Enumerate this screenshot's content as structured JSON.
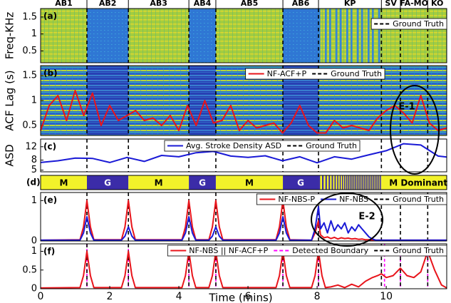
{
  "chart_data": [
    {
      "type": "heatmap",
      "panel_label": "(a)",
      "ylabel": "Freq-KHz",
      "xlim": [
        0,
        11.75
      ],
      "ylim": [
        0.15,
        1.75
      ],
      "yticks": [
        0.5,
        1,
        1.5
      ],
      "sections": [
        "AB1",
        "AB2",
        "AB3",
        "AB4",
        "AB5",
        "AB6",
        "KP",
        "SV",
        "FA-MO",
        "KO"
      ],
      "boundaries": [
        1.34,
        2.54,
        4.29,
        5.07,
        7.01,
        8.04,
        9.86,
        10.41,
        11.2
      ],
      "series": [
        {
          "name": "Ground Truth",
          "color": "#000000",
          "dashed": true
        }
      ]
    },
    {
      "type": "line",
      "heatmap_background": true,
      "panel_label": "(b)",
      "ylabel": "ACF Lag (s)",
      "xlim": [
        0,
        11.75
      ],
      "ylim": [
        0.3,
        1.7
      ],
      "yticks": [
        0.5,
        1,
        1.5
      ],
      "annotation": "E-1",
      "x": [
        0,
        0.25,
        0.5,
        0.75,
        1,
        1.25,
        1.5,
        1.75,
        2,
        2.25,
        2.5,
        2.75,
        3,
        3.25,
        3.5,
        3.75,
        4,
        4.25,
        4.5,
        4.75,
        5,
        5.25,
        5.5,
        5.75,
        6,
        6.25,
        6.5,
        6.75,
        7,
        7.25,
        7.5,
        7.75,
        8,
        8.25,
        8.5,
        8.75,
        9,
        9.25,
        9.5,
        9.75,
        10,
        10.25,
        10.5,
        10.75,
        11,
        11.25,
        11.5,
        11.75
      ],
      "series": [
        {
          "name": "NF-ACF+P",
          "color": "#e8141b",
          "values": [
            0.4,
            0.9,
            1.1,
            0.6,
            1.2,
            0.7,
            1.15,
            0.5,
            0.9,
            0.6,
            0.7,
            0.8,
            0.6,
            0.65,
            0.5,
            0.7,
            0.4,
            0.9,
            0.5,
            1.0,
            0.55,
            0.6,
            0.9,
            0.4,
            0.6,
            0.45,
            0.5,
            0.55,
            0.35,
            0.55,
            0.9,
            0.5,
            0.35,
            0.35,
            0.6,
            0.45,
            0.5,
            0.45,
            0.4,
            0.65,
            0.8,
            0.9,
            0.75,
            0.55,
            1.1,
            0.55,
            0.4,
            0.45
          ]
        },
        {
          "name": "Ground Truth",
          "color": "#000000",
          "dashed": true
        }
      ]
    },
    {
      "type": "line",
      "panel_label": "(c)",
      "ylabel": "ASD",
      "xlim": [
        0,
        11.75
      ],
      "ylim": [
        4.5,
        14.3
      ],
      "yticks": [
        5,
        8,
        12
      ],
      "x": [
        0,
        0.5,
        1,
        1.5,
        2,
        2.5,
        3,
        3.5,
        4,
        4.5,
        5,
        5.5,
        6,
        6.5,
        7,
        7.5,
        8,
        8.5,
        9,
        9.5,
        10,
        10.5,
        11,
        11.5,
        11.75
      ],
      "series": [
        {
          "name": "Avg. Stroke Density ASD",
          "color": "#1a1ad6",
          "values": [
            7.3,
            7.8,
            8.6,
            8.5,
            7.3,
            8.8,
            7.6,
            9.4,
            9.0,
            10.2,
            10.6,
            9.2,
            8.8,
            9.3,
            7.8,
            9.0,
            7.2,
            9.0,
            8.3,
            9.6,
            10.8,
            12.9,
            12.5,
            9.2,
            8.9
          ]
        },
        {
          "name": "Ground Truth",
          "color": "#000000",
          "dashed": true
        }
      ]
    },
    {
      "type": "timeline",
      "panel_label": "(d)",
      "xlim": [
        0,
        11.75
      ],
      "segments": [
        "M",
        "G",
        "M",
        "G",
        "M",
        "G"
      ],
      "dominant_label": "M Dominant",
      "colors": [
        "#f2f22a",
        "#3b2ca8"
      ]
    },
    {
      "type": "line",
      "panel_label": "(e)",
      "xlim": [
        0,
        11.75
      ],
      "ylim": [
        0,
        1.2
      ],
      "yticks": [
        0,
        1
      ],
      "annotation": "E-2",
      "x": [
        0,
        1.14,
        1.24,
        1.34,
        1.44,
        1.54,
        2.34,
        2.44,
        2.54,
        2.64,
        2.74,
        4.09,
        4.19,
        4.29,
        4.39,
        4.49,
        4.87,
        4.97,
        5.07,
        5.17,
        5.27,
        6.81,
        6.91,
        7.01,
        7.11,
        7.21,
        7.84,
        7.94,
        8.04,
        8.1,
        8.2,
        8.3,
        8.4,
        8.5,
        8.6,
        8.7,
        8.8,
        8.9,
        9.0,
        9.1,
        9.2,
        9.3,
        9.4,
        9.5,
        9.6,
        9.7,
        11.75
      ],
      "series": [
        {
          "name": "NF-NBS-P",
          "color": "#e8141b",
          "values": [
            0.02,
            0.03,
            0.35,
            1.0,
            0.35,
            0.03,
            0.03,
            0.35,
            1.0,
            0.35,
            0.03,
            0.03,
            0.35,
            1.0,
            0.35,
            0.03,
            0.03,
            0.35,
            1.0,
            0.35,
            0.03,
            0.03,
            0.35,
            1.0,
            0.35,
            0.03,
            0.02,
            0.2,
            0.5,
            0.15,
            0.08,
            0.1,
            0.06,
            0.09,
            0.05,
            0.08,
            0.06,
            0.07,
            0.05,
            0.06,
            0.04,
            0.05,
            0.03,
            0.03,
            0.02,
            0.02,
            0.02
          ]
        },
        {
          "name": "NF-NBS",
          "color": "#1a1ad6",
          "values": [
            0.02,
            0.02,
            0.2,
            0.6,
            0.2,
            0.02,
            0.02,
            0.12,
            0.35,
            0.12,
            0.02,
            0.02,
            0.2,
            0.6,
            0.2,
            0.02,
            0.02,
            0.12,
            0.35,
            0.12,
            0.02,
            0.02,
            0.2,
            0.6,
            0.2,
            0.02,
            0.02,
            0.3,
            0.85,
            0.3,
            0.45,
            0.2,
            0.5,
            0.25,
            0.4,
            0.3,
            0.45,
            0.2,
            0.35,
            0.25,
            0.4,
            0.3,
            0.2,
            0.1,
            0.05,
            0.02,
            0.02
          ]
        },
        {
          "name": "Ground Truth",
          "color": "#000000",
          "dashed": true
        }
      ]
    },
    {
      "type": "line",
      "panel_label": "(f)",
      "xlabel": "Time (mins)",
      "xlim": [
        0,
        11.75
      ],
      "ylim": [
        0,
        1.2
      ],
      "yticks": [
        0,
        0.5,
        1
      ],
      "xticks": [
        0,
        2,
        4,
        6,
        8,
        10
      ],
      "x": [
        0,
        1.14,
        1.24,
        1.34,
        1.44,
        1.54,
        2.34,
        2.44,
        2.54,
        2.64,
        2.74,
        4.09,
        4.19,
        4.29,
        4.39,
        4.49,
        4.87,
        4.97,
        5.07,
        5.17,
        5.27,
        6.81,
        6.91,
        7.01,
        7.11,
        7.21,
        7.84,
        7.94,
        8.04,
        8.14,
        8.24,
        8.4,
        8.6,
        8.8,
        9.0,
        9.2,
        9.4,
        9.6,
        9.75,
        9.86,
        10.0,
        10.2,
        10.41,
        10.6,
        10.8,
        11.0,
        11.2,
        11.4,
        11.6,
        11.75
      ],
      "series": [
        {
          "name": "NF-NBS || NF-ACF+P",
          "color": "#e8141b",
          "values": [
            0.02,
            0.03,
            0.35,
            1.0,
            0.35,
            0.03,
            0.03,
            0.35,
            1.0,
            0.35,
            0.03,
            0.03,
            0.35,
            1.0,
            0.35,
            0.03,
            0.03,
            0.35,
            1.0,
            0.35,
            0.03,
            0.03,
            0.35,
            1.0,
            0.35,
            0.03,
            0.03,
            0.35,
            1.0,
            0.35,
            0.03,
            0.05,
            0.1,
            0.03,
            0.12,
            0.05,
            0.2,
            0.3,
            0.35,
            0.4,
            0.3,
            0.35,
            0.55,
            0.35,
            0.3,
            0.45,
            1.0,
            0.5,
            0.1,
            0.02
          ]
        },
        {
          "name": "Detected Boundary",
          "color": "#ff00ff",
          "dashed": true,
          "x": [
            1.34,
            2.54,
            4.29,
            5.07,
            7.01,
            8.04,
            9.95,
            10.41,
            11.2
          ]
        },
        {
          "name": "Ground Truth",
          "color": "#000000",
          "dashed": true
        }
      ]
    }
  ]
}
